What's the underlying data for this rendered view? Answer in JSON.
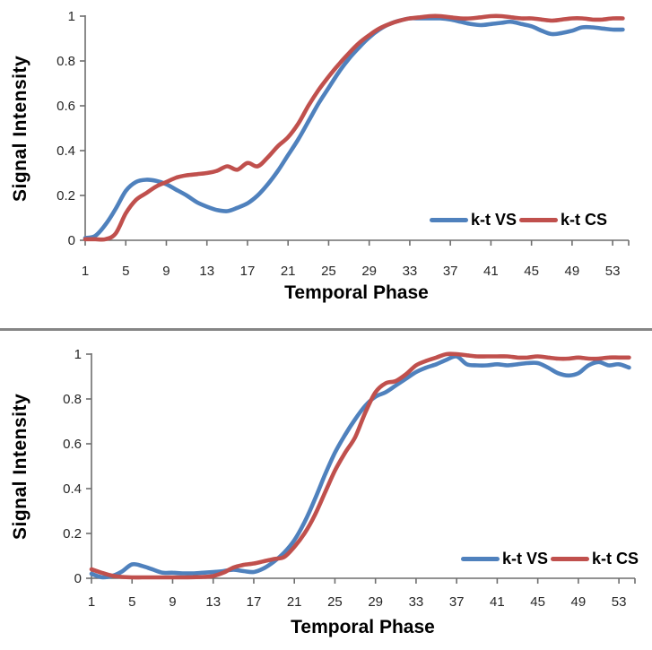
{
  "divider_color": "#858585",
  "axis_color": "#6e6e6e",
  "tick_label_color": "#262626",
  "chart_data": [
    {
      "type": "line",
      "title": "",
      "xlabel": "Temporal Phase",
      "ylabel": "Signal Intensity",
      "xlim": [
        1,
        54.5
      ],
      "ylim": [
        0,
        1
      ],
      "x_ticks": [
        1,
        5,
        9,
        13,
        17,
        21,
        25,
        29,
        33,
        37,
        41,
        45,
        49,
        53
      ],
      "y_ticks": [
        0,
        0.2,
        0.4,
        0.6,
        0.8,
        1
      ],
      "grid": false,
      "legend_position": "inside-bottom-right",
      "x": [
        1,
        2,
        3,
        4,
        5,
        6,
        7,
        8,
        9,
        10,
        11,
        12,
        13,
        14,
        15,
        16,
        17,
        18,
        19,
        20,
        21,
        22,
        23,
        24,
        25,
        26,
        27,
        28,
        29,
        30,
        31,
        32,
        33,
        34,
        35,
        36,
        37,
        38,
        39,
        40,
        41,
        42,
        43,
        44,
        45,
        46,
        47,
        48,
        49,
        50,
        51,
        52,
        53,
        54
      ],
      "series": [
        {
          "name": "k-t VS",
          "color": "#4F81BD",
          "values": [
            0.01,
            0.02,
            0.07,
            0.14,
            0.22,
            0.26,
            0.27,
            0.265,
            0.25,
            0.225,
            0.2,
            0.17,
            0.15,
            0.135,
            0.13,
            0.145,
            0.165,
            0.2,
            0.25,
            0.31,
            0.38,
            0.45,
            0.53,
            0.61,
            0.68,
            0.75,
            0.81,
            0.86,
            0.905,
            0.94,
            0.965,
            0.98,
            0.99,
            0.99,
            0.99,
            0.99,
            0.985,
            0.975,
            0.965,
            0.96,
            0.965,
            0.97,
            0.975,
            0.965,
            0.955,
            0.935,
            0.92,
            0.925,
            0.935,
            0.95,
            0.95,
            0.945,
            0.94,
            0.94
          ]
        },
        {
          "name": "k-t CS",
          "color": "#C0504D",
          "values": [
            0.005,
            0.005,
            0.005,
            0.03,
            0.12,
            0.18,
            0.21,
            0.24,
            0.26,
            0.28,
            0.29,
            0.295,
            0.3,
            0.31,
            0.33,
            0.315,
            0.345,
            0.33,
            0.37,
            0.42,
            0.46,
            0.52,
            0.6,
            0.67,
            0.73,
            0.785,
            0.835,
            0.88,
            0.915,
            0.945,
            0.965,
            0.98,
            0.99,
            0.995,
            1.0,
            1.0,
            0.995,
            0.99,
            0.99,
            0.995,
            1.0,
            1.0,
            0.995,
            0.99,
            0.99,
            0.985,
            0.98,
            0.985,
            0.99,
            0.99,
            0.985,
            0.985,
            0.99,
            0.99
          ]
        }
      ]
    },
    {
      "type": "line",
      "title": "",
      "xlabel": "Temporal Phase",
      "ylabel": "Signal Intensity",
      "xlim": [
        1,
        54.5
      ],
      "ylim": [
        0,
        1
      ],
      "x_ticks": [
        1,
        5,
        9,
        13,
        17,
        21,
        25,
        29,
        33,
        37,
        41,
        45,
        49,
        53
      ],
      "y_ticks": [
        0,
        0.2,
        0.4,
        0.6,
        0.8,
        1
      ],
      "grid": false,
      "legend_position": "inside-bottom-right",
      "x": [
        1,
        2,
        3,
        4,
        5,
        6,
        7,
        8,
        9,
        10,
        11,
        12,
        13,
        14,
        15,
        16,
        17,
        18,
        19,
        20,
        21,
        22,
        23,
        24,
        25,
        26,
        27,
        28,
        29,
        30,
        31,
        32,
        33,
        34,
        35,
        36,
        37,
        38,
        39,
        40,
        41,
        42,
        43,
        44,
        45,
        46,
        47,
        48,
        49,
        50,
        51,
        52,
        53,
        54
      ],
      "series": [
        {
          "name": "k-t VS",
          "color": "#4F81BD",
          "values": [
            0.02,
            0.005,
            0.01,
            0.03,
            0.062,
            0.055,
            0.04,
            0.025,
            0.025,
            0.022,
            0.022,
            0.025,
            0.028,
            0.032,
            0.038,
            0.032,
            0.028,
            0.045,
            0.075,
            0.115,
            0.17,
            0.25,
            0.35,
            0.46,
            0.56,
            0.64,
            0.71,
            0.77,
            0.81,
            0.83,
            0.86,
            0.89,
            0.92,
            0.94,
            0.955,
            0.975,
            0.99,
            0.955,
            0.95,
            0.95,
            0.955,
            0.95,
            0.955,
            0.96,
            0.96,
            0.94,
            0.915,
            0.905,
            0.915,
            0.95,
            0.965,
            0.95,
            0.955,
            0.94
          ]
        },
        {
          "name": "k-t CS",
          "color": "#C0504D",
          "values": [
            0.04,
            0.025,
            0.012,
            0.006,
            0.004,
            0.004,
            0.004,
            0.004,
            0.004,
            0.004,
            0.005,
            0.006,
            0.01,
            0.025,
            0.048,
            0.06,
            0.066,
            0.076,
            0.086,
            0.095,
            0.14,
            0.2,
            0.28,
            0.38,
            0.48,
            0.56,
            0.63,
            0.74,
            0.83,
            0.87,
            0.88,
            0.91,
            0.95,
            0.97,
            0.985,
            1.0,
            1.0,
            0.995,
            0.99,
            0.99,
            0.99,
            0.99,
            0.985,
            0.985,
            0.99,
            0.985,
            0.98,
            0.98,
            0.985,
            0.98,
            0.98,
            0.985,
            0.985,
            0.985
          ]
        }
      ]
    }
  ]
}
